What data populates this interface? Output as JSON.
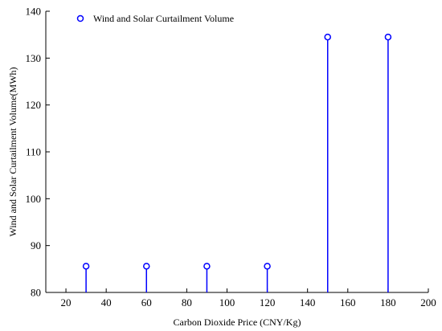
{
  "chart_data": {
    "type": "stem",
    "title": "",
    "xlabel": "Carbon Dioxide Price (CNY/Kg)",
    "ylabel": "Wind and Solar Curtailment Volume(MWh)",
    "xlim": [
      10,
      200
    ],
    "ylim": [
      80,
      140
    ],
    "x_ticks": [
      20,
      40,
      60,
      80,
      100,
      120,
      140,
      160,
      180,
      200
    ],
    "y_ticks": [
      80,
      90,
      100,
      110,
      120,
      130,
      140
    ],
    "legend_position": "top-left",
    "grid": false,
    "series": [
      {
        "name": "Wind and Solar Curtailment Volume",
        "color": "#0000ff",
        "marker": "circle-open",
        "x": [
          30,
          60,
          90,
          120,
          150,
          180
        ],
        "y": [
          85.6,
          85.6,
          85.6,
          85.6,
          134.5,
          134.5
        ]
      }
    ]
  }
}
